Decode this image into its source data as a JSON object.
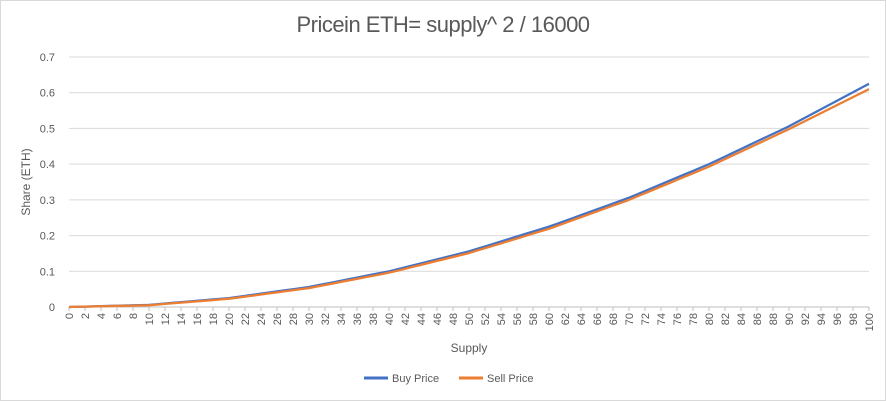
{
  "chart_data": {
    "type": "line",
    "title": "Pricein ETH= supply^ 2 / 16000",
    "xlabel": "Supply",
    "ylabel": "Share (ETH)",
    "ylim": [
      0,
      0.7
    ],
    "yticks": [
      "0",
      "0.1",
      "0.2",
      "0.3",
      "0.4",
      "0.5",
      "0.6",
      "0.7"
    ],
    "xlim": [
      0,
      100
    ],
    "xticks": [
      "0",
      "2",
      "4",
      "6",
      "8",
      "10",
      "12",
      "14",
      "16",
      "18",
      "20",
      "22",
      "24",
      "26",
      "28",
      "30",
      "32",
      "34",
      "36",
      "38",
      "40",
      "42",
      "44",
      "46",
      "48",
      "50",
      "52",
      "54",
      "56",
      "58",
      "60",
      "62",
      "64",
      "66",
      "68",
      "70",
      "72",
      "74",
      "76",
      "78",
      "80",
      "82",
      "84",
      "86",
      "88",
      "90",
      "92",
      "94",
      "96",
      "98",
      "100"
    ],
    "grid": true,
    "legend_position": "bottom",
    "series": [
      {
        "name": "Buy Price",
        "color": "#4472c4",
        "x": [
          0,
          10,
          20,
          30,
          40,
          50,
          60,
          70,
          80,
          90,
          100
        ],
        "values": [
          0.0,
          0.006,
          0.025,
          0.056,
          0.1,
          0.156,
          0.225,
          0.306,
          0.4,
          0.506,
          0.625
        ]
      },
      {
        "name": "Sell Price",
        "color": "#ed7d31",
        "x": [
          0,
          10,
          20,
          30,
          40,
          50,
          60,
          70,
          80,
          90,
          100
        ],
        "values": [
          0.0,
          0.005,
          0.023,
          0.053,
          0.096,
          0.151,
          0.219,
          0.3,
          0.393,
          0.498,
          0.61
        ]
      }
    ]
  }
}
